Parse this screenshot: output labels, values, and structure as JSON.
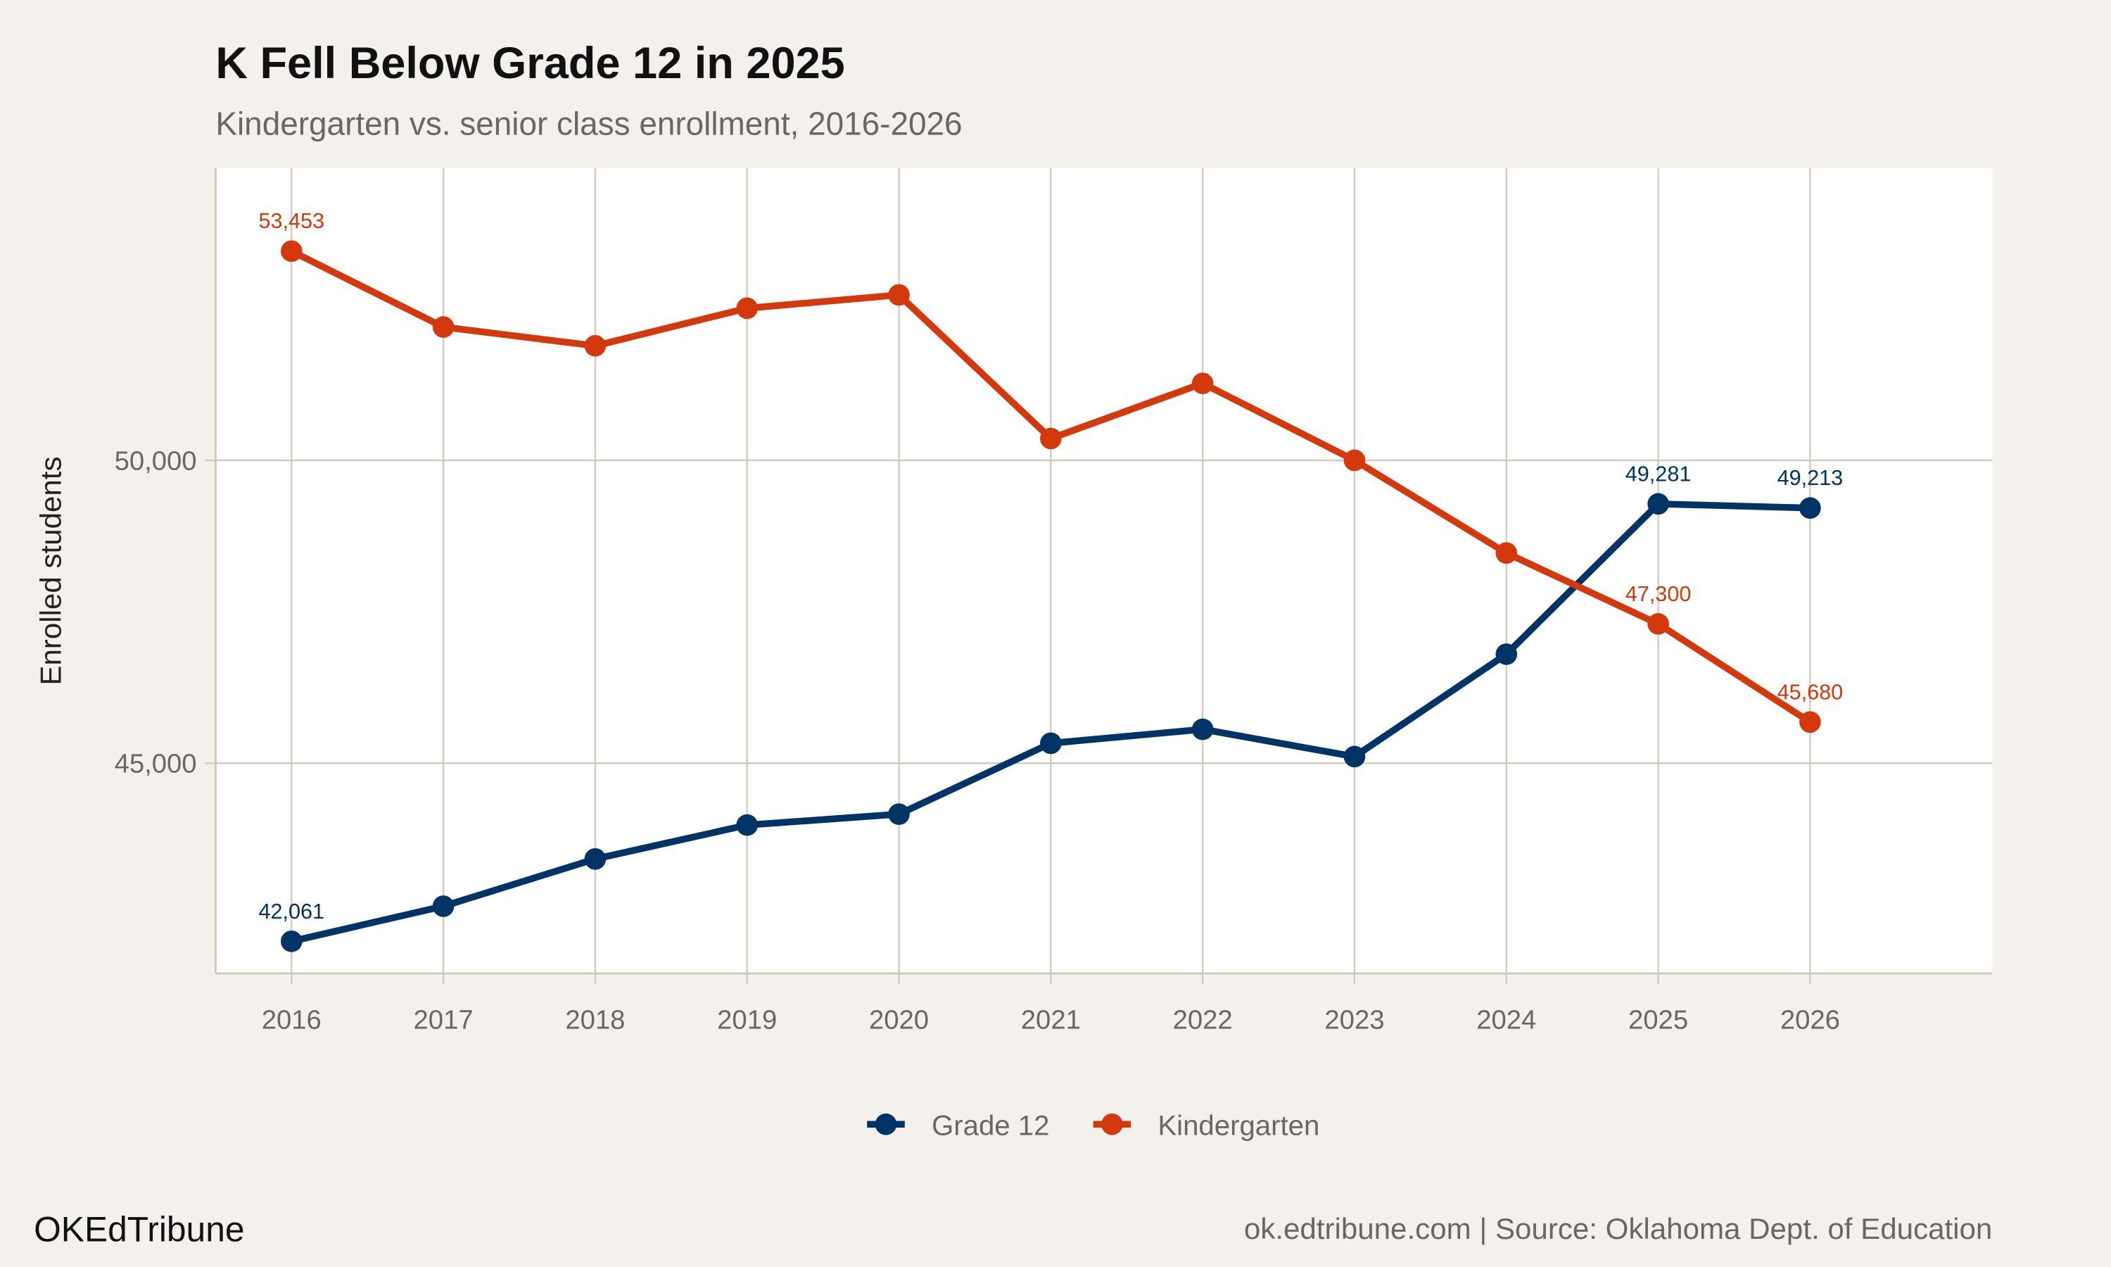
{
  "chart_data": {
    "type": "line",
    "title": "K Fell Below Grade 12 in 2025",
    "subtitle": "Kindergarten vs. senior class enrollment, 2016-2026",
    "xlabel": "",
    "ylabel": "Enrolled students",
    "x": [
      2016,
      2017,
      2018,
      2019,
      2020,
      2021,
      2022,
      2023,
      2024,
      2025,
      2026
    ],
    "x_ticks": [
      "2016",
      "2017",
      "2018",
      "2019",
      "2020",
      "2021",
      "2022",
      "2023",
      "2024",
      "2025",
      "2026"
    ],
    "y_ticks": [
      {
        "value": 45000,
        "label": "45,000"
      },
      {
        "value": 50000,
        "label": "50,000"
      }
    ],
    "xlim": [
      2015.5,
      2027.2
    ],
    "ylim": [
      41530,
      54820
    ],
    "grid": true,
    "legend_position": "bottom",
    "series": [
      {
        "name": "Grade 12",
        "color": "#003366",
        "values": [
          42061,
          42640,
          43420,
          43980,
          44160,
          45330,
          45560,
          45110,
          46800,
          49281,
          49213
        ],
        "data_labels": [
          {
            "x": 2016,
            "label": "42,061"
          },
          {
            "x": 2025,
            "label": "49,281"
          },
          {
            "x": 2026,
            "label": "49,213"
          }
        ]
      },
      {
        "name": "Kindergarten",
        "color": "#D4380D",
        "values": [
          53453,
          52200,
          51890,
          52510,
          52730,
          50360,
          51270,
          50000,
          48470,
          47300,
          45680
        ],
        "data_labels": [
          {
            "x": 2016,
            "label": "53,453"
          },
          {
            "x": 2025,
            "label": "47,300"
          },
          {
            "x": 2026,
            "label": "45,680"
          }
        ]
      }
    ]
  },
  "footer": {
    "brand": "OKEdTribune",
    "source": "ok.edtribune.com | Source: Oklahoma Dept. of Education"
  },
  "colors": {
    "background": "#F4F1EC",
    "panel": "#FFFFFF",
    "grid": "#CFC8BE"
  }
}
